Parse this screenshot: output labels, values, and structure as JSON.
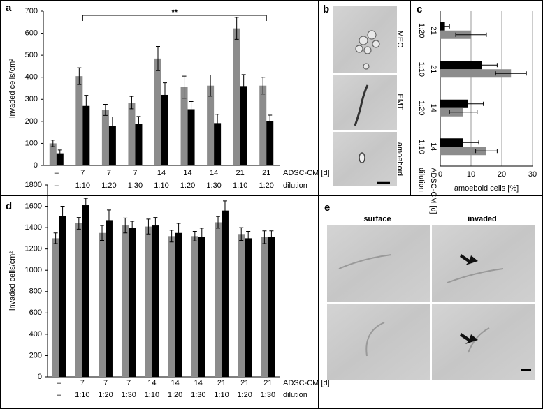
{
  "panels": {
    "a": "a",
    "b": "b",
    "c": "c",
    "d": "d",
    "e": "e"
  },
  "micrographs_b": [
    "MEC",
    "EMT",
    "amoeboid"
  ],
  "micrographs_e": {
    "columns": [
      "surface",
      "invaded"
    ]
  },
  "chart_data": [
    {
      "type": "bar",
      "y_label": "invaded cells/cm²",
      "annotation": "**",
      "category_rows": [
        {
          "label": "ADSC-CM [d]",
          "values": [
            "–",
            "7",
            "7",
            "7",
            "14",
            "14",
            "14",
            "21",
            "21"
          ]
        },
        {
          "label": "dilution",
          "values": [
            "–",
            "1:10",
            "1:20",
            "1:30",
            "1:10",
            "1:20",
            "1:30",
            "1:10",
            "1:20"
          ]
        }
      ],
      "series": [
        {
          "color": "#8c8c8c",
          "values": [
            100,
            405,
            252,
            285,
            485,
            355,
            362,
            622,
            362
          ],
          "errors": [
            15,
            38,
            25,
            28,
            55,
            50,
            48,
            50,
            38
          ]
        },
        {
          "color": "#000000",
          "values": [
            55,
            270,
            180,
            190,
            320,
            255,
            192,
            360,
            200
          ],
          "errors": [
            15,
            48,
            40,
            32,
            55,
            35,
            40,
            52,
            28
          ]
        }
      ],
      "ylim": [
        0,
        700
      ],
      "yticks": [
        0,
        100,
        200,
        300,
        400,
        500,
        600,
        700
      ],
      "grid": false
    },
    {
      "type": "hbar",
      "x_label": "amoeboid cells [%]",
      "category_rows": [
        {
          "label": "ADSC-CM [d]",
          "values": [
            "21",
            "21",
            "14",
            "14"
          ]
        },
        {
          "label": "dilution",
          "values": [
            "1:20",
            "1:10",
            "1:20",
            "1:10"
          ]
        }
      ],
      "series": [
        {
          "color": "#000000",
          "values": [
            1.5,
            13.5,
            9,
            7.5
          ],
          "errors": [
            1.5,
            5,
            5,
            5
          ]
        },
        {
          "color": "#8c8c8c",
          "values": [
            10,
            23,
            7.5,
            15
          ],
          "errors": [
            5,
            5,
            4.5,
            3.5
          ]
        }
      ],
      "xlim": [
        0,
        30
      ],
      "xticks": [
        0,
        10,
        20,
        30
      ],
      "grid": true
    },
    {
      "type": "bar",
      "y_label": "invaded cells/cm²",
      "category_rows": [
        {
          "label": "ADSC-CM [d]",
          "values": [
            "–",
            "7",
            "7",
            "7",
            "14",
            "14",
            "14",
            "21",
            "21",
            "21"
          ]
        },
        {
          "label": "dilution",
          "values": [
            "–",
            "1:10",
            "1:20",
            "1:30",
            "1:10",
            "1:20",
            "1:30",
            "1:10",
            "1:20",
            "1:30"
          ]
        }
      ],
      "series": [
        {
          "color": "#8c8c8c",
          "values": [
            1300,
            1440,
            1350,
            1420,
            1410,
            1320,
            1320,
            1450,
            1340,
            1310
          ],
          "errors": [
            50,
            55,
            70,
            70,
            70,
            55,
            45,
            55,
            60,
            60
          ]
        },
        {
          "color": "#000000",
          "values": [
            1510,
            1610,
            1470,
            1400,
            1420,
            1350,
            1310,
            1560,
            1300,
            1310
          ],
          "errors": [
            90,
            65,
            95,
            60,
            75,
            90,
            85,
            90,
            65,
            60
          ]
        }
      ],
      "ylim": [
        0,
        1800
      ],
      "yticks": [
        0,
        200,
        400,
        600,
        800,
        1000,
        1200,
        1400,
        1600,
        1800
      ],
      "grid": false
    }
  ]
}
